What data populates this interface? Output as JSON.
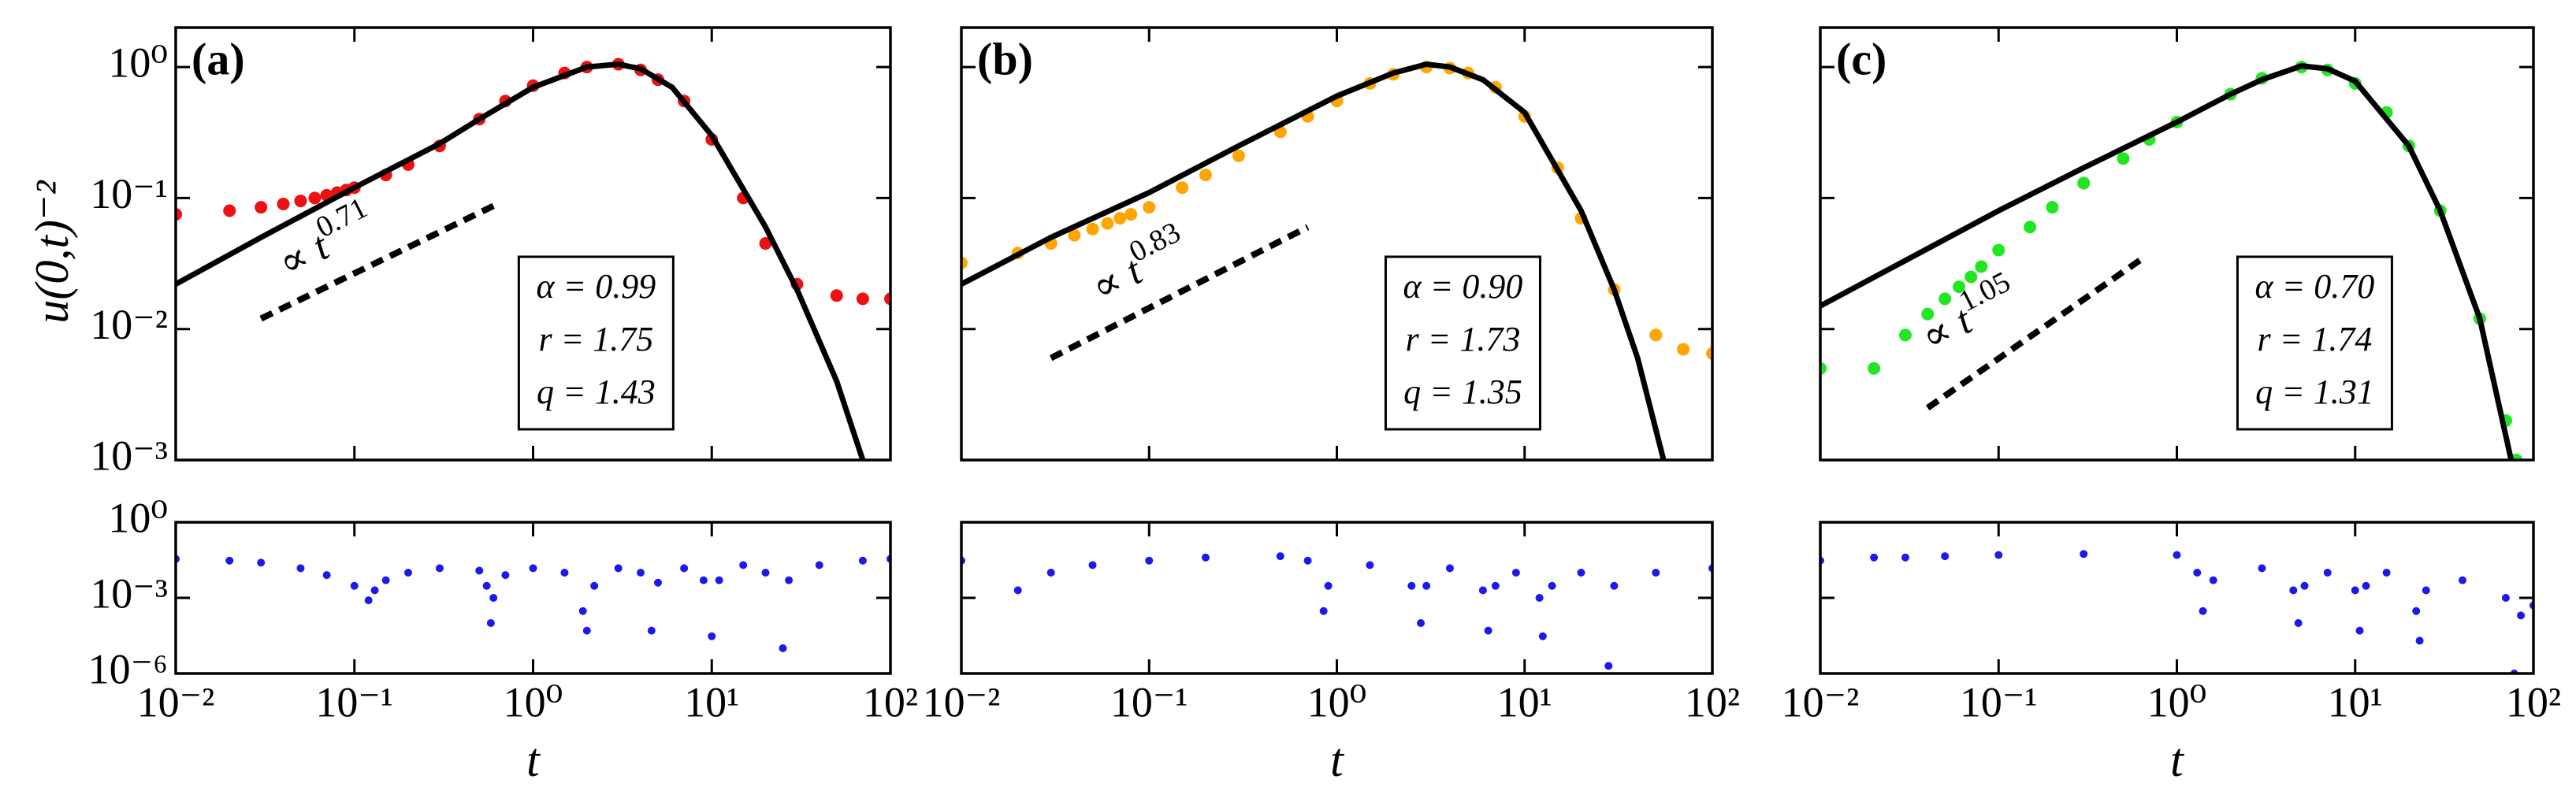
{
  "chart_data": [
    {
      "type": "scatter",
      "panel": "(a)",
      "xscale": "log",
      "yscale": "log",
      "xlim": [
        0.01,
        100
      ],
      "ylim": [
        0.001,
        2
      ],
      "xticks": [
        0.01,
        0.1,
        1,
        10,
        100
      ],
      "yticks": [
        {
          "value": 0.001,
          "label": "10⁻³"
        },
        {
          "value": 0.01,
          "label": "10⁻²"
        },
        {
          "value": 0.1,
          "label": "10⁻¹"
        },
        {
          "value": 1,
          "label": "10⁰"
        }
      ],
      "ylabel": "u(0,t)⁻²",
      "points": {
        "color": "#ee1111",
        "x": [
          0.01,
          0.02,
          0.03,
          0.04,
          0.05,
          0.06,
          0.07,
          0.08,
          0.09,
          0.1,
          0.15,
          0.2,
          0.3,
          0.5,
          0.7,
          1,
          1.5,
          2,
          3,
          4,
          5,
          7,
          10,
          15,
          20,
          30,
          50,
          70,
          100
        ],
        "y": [
          0.075,
          0.08,
          0.085,
          0.09,
          0.095,
          0.1,
          0.105,
          0.11,
          0.115,
          0.12,
          0.15,
          0.18,
          0.25,
          0.4,
          0.55,
          0.72,
          0.9,
          1.0,
          1.05,
          0.95,
          0.8,
          0.55,
          0.28,
          0.1,
          0.045,
          0.022,
          0.018,
          0.017,
          0.017
        ]
      },
      "fit": {
        "color": "#000000",
        "x": [
          0.01,
          0.03,
          0.1,
          0.3,
          0.5,
          1,
          2,
          3,
          4,
          6,
          10,
          20,
          30,
          50,
          70
        ],
        "y": [
          0.022,
          0.05,
          0.12,
          0.26,
          0.4,
          0.7,
          1.0,
          1.05,
          0.97,
          0.7,
          0.3,
          0.06,
          0.02,
          0.004,
          0.001
        ]
      },
      "guide": {
        "x": [
          0.03,
          0.6
        ],
        "y": [
          0.012,
          0.087
        ]
      },
      "annotation": {
        "text": "∝ t",
        "exponent": "0.71"
      },
      "params": [
        "α = 0.99",
        "r = 1.75",
        "q = 1.43"
      ]
    },
    {
      "type": "scatter",
      "xscale": "log",
      "yscale": "log",
      "xlim": [
        0.01,
        100
      ],
      "ylim": [
        1e-06,
        1
      ],
      "xticks": [
        {
          "value": 0.01,
          "label": "10⁻²"
        },
        {
          "value": 0.1,
          "label": "10⁻¹"
        },
        {
          "value": 1,
          "label": "10⁰"
        },
        {
          "value": 10,
          "label": "10¹"
        },
        {
          "value": 100,
          "label": "10²"
        }
      ],
      "yticks": [
        {
          "value": 1e-06,
          "label": "10⁻⁶"
        },
        {
          "value": 0.001,
          "label": "10⁻³"
        },
        {
          "value": 1,
          "label": "10⁰"
        }
      ],
      "xlabel": "t",
      "points": {
        "color": "#1a1aee",
        "x": [
          0.01,
          0.02,
          0.03,
          0.05,
          0.07,
          0.1,
          0.12,
          0.13,
          0.15,
          0.2,
          0.3,
          0.5,
          0.55,
          0.58,
          0.6,
          0.7,
          1,
          1.5,
          1.9,
          2,
          2.2,
          3,
          4,
          4.6,
          5,
          7,
          9,
          10,
          11,
          15,
          20,
          25,
          27,
          40,
          70,
          100
        ],
        "y": [
          0.035,
          0.03,
          0.025,
          0.015,
          0.008,
          0.003,
          0.0008,
          0.002,
          0.005,
          0.01,
          0.015,
          0.012,
          0.003,
          0.0001,
          0.001,
          0.008,
          0.015,
          0.01,
          0.0003,
          5e-05,
          0.003,
          0.015,
          0.01,
          5e-05,
          0.004,
          0.015,
          0.005,
          3e-05,
          0.005,
          0.02,
          0.01,
          1e-05,
          0.005,
          0.02,
          0.03,
          0.035
        ]
      }
    },
    {
      "type": "scatter",
      "panel": "(b)",
      "xscale": "log",
      "yscale": "log",
      "xlim": [
        0.01,
        100
      ],
      "ylim": [
        0.001,
        2
      ],
      "xticks": [
        0.01,
        0.1,
        1,
        10,
        100
      ],
      "yticks": [
        0.001,
        0.01,
        0.1,
        1
      ],
      "points": {
        "color": "#ffa500",
        "x": [
          0.01,
          0.02,
          0.03,
          0.04,
          0.05,
          0.06,
          0.07,
          0.08,
          0.1,
          0.15,
          0.2,
          0.3,
          0.5,
          0.7,
          1,
          1.5,
          2,
          3,
          4,
          5,
          7,
          10,
          15,
          20,
          30,
          50,
          70,
          100
        ],
        "y": [
          0.032,
          0.038,
          0.045,
          0.052,
          0.058,
          0.064,
          0.07,
          0.075,
          0.085,
          0.12,
          0.15,
          0.21,
          0.32,
          0.42,
          0.55,
          0.75,
          0.88,
          1.0,
          0.98,
          0.9,
          0.7,
          0.42,
          0.17,
          0.07,
          0.02,
          0.009,
          0.007,
          0.0065
        ]
      },
      "fit": {
        "color": "#000000",
        "x": [
          0.01,
          0.03,
          0.1,
          0.3,
          1,
          2,
          3,
          4,
          6,
          10,
          20,
          30,
          40,
          55
        ],
        "y": [
          0.022,
          0.05,
          0.11,
          0.25,
          0.6,
          0.9,
          1.05,
          1.0,
          0.8,
          0.45,
          0.08,
          0.02,
          0.006,
          0.001
        ]
      },
      "guide": {
        "x": [
          0.03,
          0.7
        ],
        "y": [
          0.006,
          0.06
        ]
      },
      "annotation": {
        "text": "∝ t",
        "exponent": "0.83"
      },
      "params": [
        "α = 0.90",
        "r = 1.73",
        "q = 1.35"
      ]
    },
    {
      "type": "scatter",
      "xscale": "log",
      "yscale": "log",
      "xlim": [
        0.01,
        100
      ],
      "ylim": [
        1e-06,
        1
      ],
      "xticks": [
        {
          "value": 0.01,
          "label": "10⁻²"
        },
        {
          "value": 0.1,
          "label": "10⁻¹"
        },
        {
          "value": 1,
          "label": "10⁰"
        },
        {
          "value": 10,
          "label": "10¹"
        },
        {
          "value": 100,
          "label": "10²"
        }
      ],
      "yticks": [
        1e-06,
        0.001,
        1
      ],
      "xlabel": "t",
      "points": {
        "color": "#1a1aee",
        "x": [
          0.01,
          0.02,
          0.03,
          0.05,
          0.1,
          0.2,
          0.5,
          0.7,
          0.85,
          0.9,
          1.5,
          2.5,
          2.8,
          3,
          4,
          6,
          6.4,
          7,
          9,
          12,
          12.5,
          14,
          20,
          28,
          30,
          50,
          100
        ],
        "y": [
          0.03,
          0.002,
          0.01,
          0.02,
          0.03,
          0.04,
          0.045,
          0.03,
          0.0003,
          0.003,
          0.02,
          0.003,
          0.0001,
          0.003,
          0.015,
          0.002,
          5e-05,
          0.003,
          0.01,
          0.001,
          3e-05,
          0.003,
          0.01,
          2e-06,
          0.003,
          0.01,
          0.015
        ]
      }
    },
    {
      "type": "scatter",
      "panel": "(c)",
      "xscale": "log",
      "yscale": "log",
      "xlim": [
        0.01,
        100
      ],
      "ylim": [
        0.001,
        2
      ],
      "xticks": [
        0.01,
        0.1,
        1,
        10,
        100
      ],
      "yticks": [
        0.001,
        0.01,
        0.1,
        1
      ],
      "points": {
        "color": "#22e622",
        "x": [
          0.01,
          0.02,
          0.03,
          0.04,
          0.05,
          0.06,
          0.07,
          0.08,
          0.1,
          0.15,
          0.2,
          0.3,
          0.5,
          0.7,
          1,
          2,
          3,
          5,
          7,
          10,
          15,
          20,
          30,
          50,
          70,
          80
        ],
        "y": [
          0.005,
          0.005,
          0.009,
          0.013,
          0.017,
          0.021,
          0.025,
          0.03,
          0.04,
          0.06,
          0.085,
          0.13,
          0.2,
          0.28,
          0.38,
          0.62,
          0.82,
          1.0,
          0.95,
          0.75,
          0.45,
          0.25,
          0.08,
          0.012,
          0.002,
          0.001
        ]
      },
      "fit": {
        "color": "#000000",
        "x": [
          0.01,
          0.1,
          0.3,
          1,
          2,
          3,
          5,
          7,
          10,
          20,
          30,
          50,
          75
        ],
        "y": [
          0.015,
          0.08,
          0.17,
          0.38,
          0.62,
          0.8,
          1.02,
          0.97,
          0.78,
          0.25,
          0.08,
          0.012,
          0.001
        ]
      },
      "guide": {
        "x": [
          0.04,
          0.65
        ],
        "y": [
          0.0025,
          0.035
        ]
      },
      "annotation": {
        "text": "∝ t",
        "exponent": "1.05"
      },
      "params": [
        "α = 0.70",
        "r = 1.74",
        "q = 1.31"
      ]
    },
    {
      "type": "scatter",
      "xscale": "log",
      "yscale": "log",
      "xlim": [
        0.01,
        100
      ],
      "ylim": [
        1e-06,
        1
      ],
      "xticks": [
        {
          "value": 0.01,
          "label": "10⁻²"
        },
        {
          "value": 0.1,
          "label": "10⁻¹"
        },
        {
          "value": 1,
          "label": "10⁰"
        },
        {
          "value": 10,
          "label": "10¹"
        },
        {
          "value": 100,
          "label": "10²"
        }
      ],
      "yticks": [
        1e-06,
        0.001,
        1
      ],
      "xlabel": "t",
      "points": {
        "color": "#1a1aee",
        "x": [
          0.01,
          0.02,
          0.03,
          0.05,
          0.1,
          0.3,
          1,
          1.3,
          1.4,
          1.6,
          3,
          4.5,
          4.8,
          5.2,
          7,
          10,
          10.6,
          11.5,
          15,
          22,
          23,
          25,
          40,
          70,
          78,
          85,
          100
        ],
        "y": [
          0.03,
          0.04,
          0.04,
          0.045,
          0.05,
          0.055,
          0.05,
          0.01,
          0.0003,
          0.005,
          0.015,
          0.002,
          0.0001,
          0.003,
          0.01,
          0.002,
          5e-05,
          0.003,
          0.01,
          0.0003,
          2e-05,
          0.002,
          0.005,
          0.001,
          1e-06,
          0.0002,
          0.0005
        ]
      }
    }
  ]
}
